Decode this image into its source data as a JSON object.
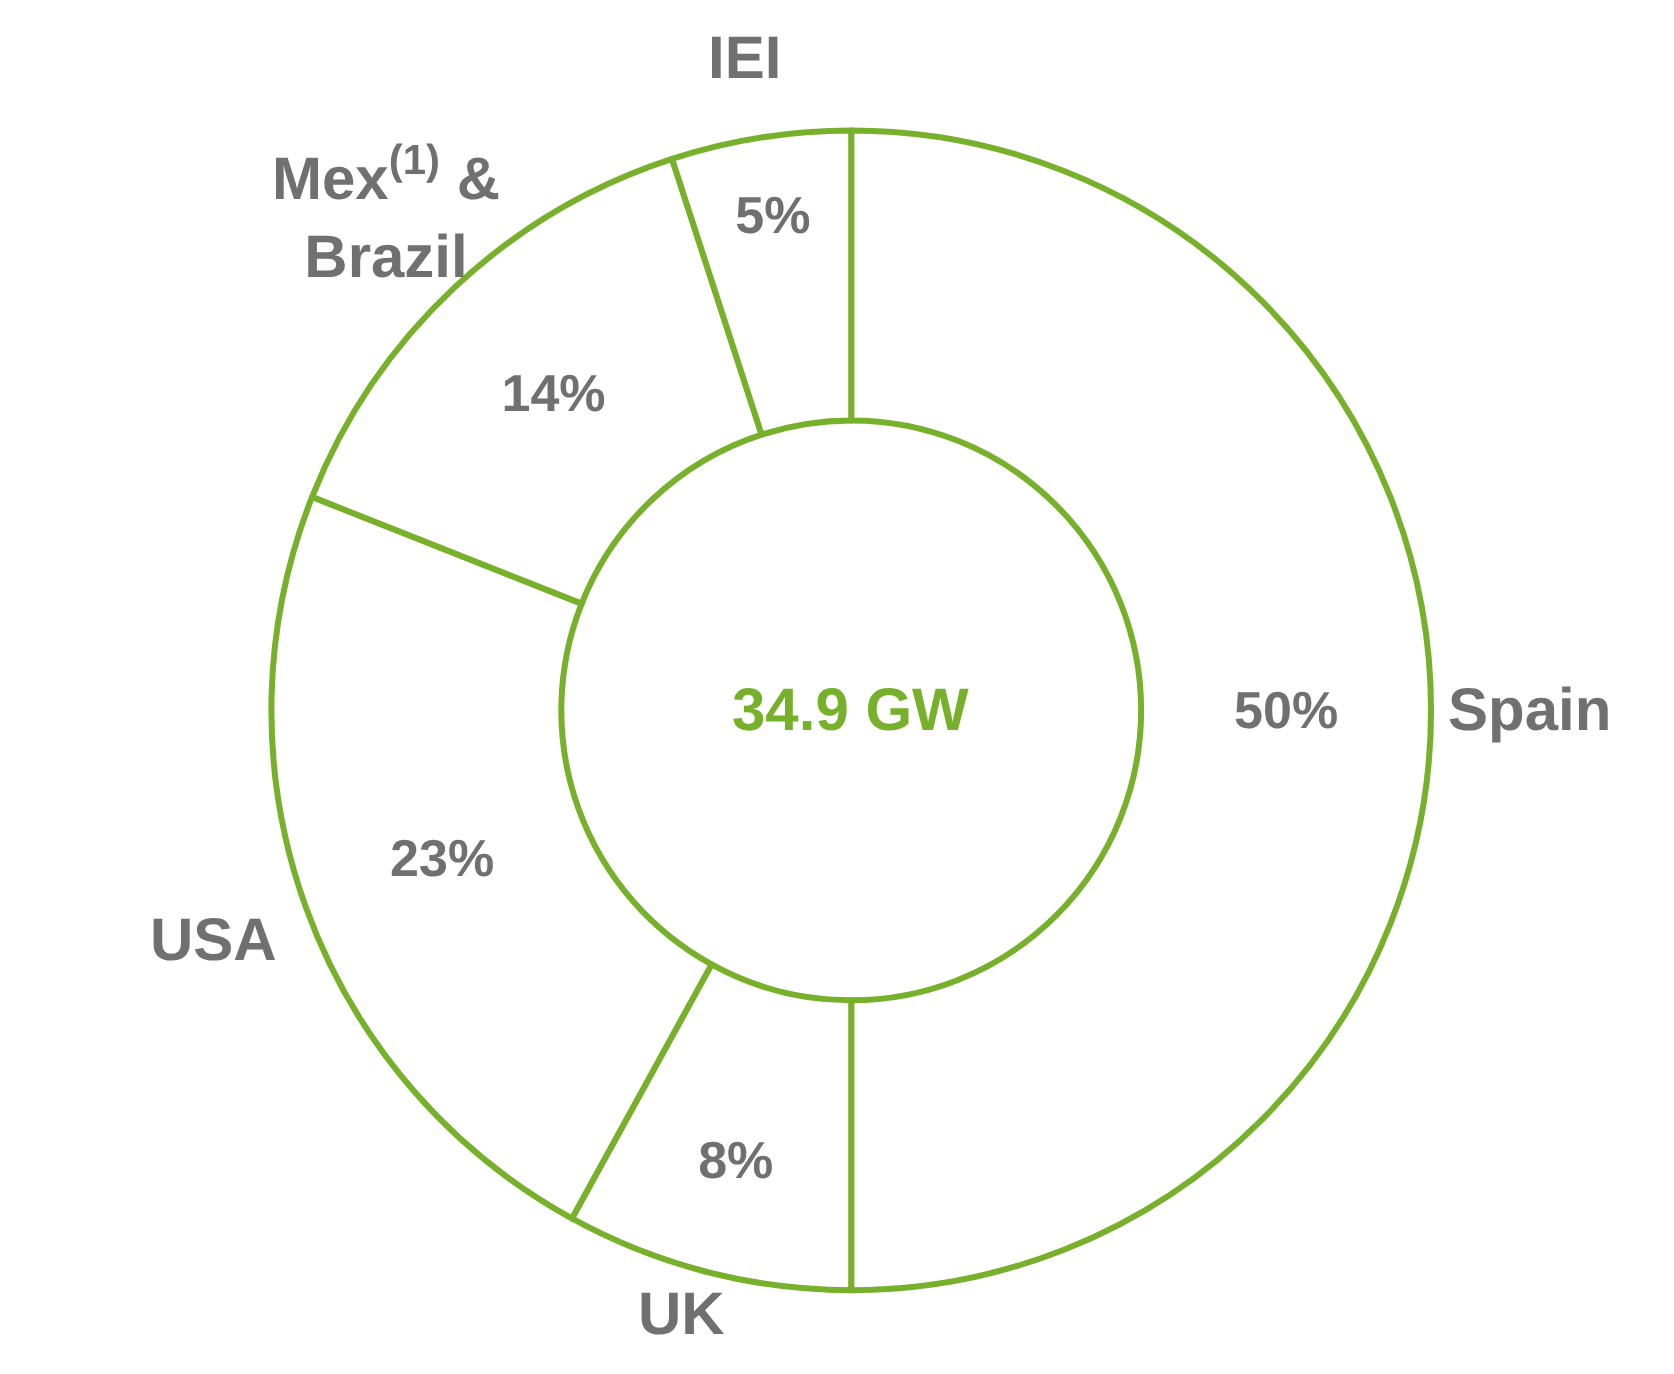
{
  "chart_data": {
    "type": "donut",
    "categories": [
      "Spain",
      "UK",
      "USA",
      "Mex$^{(1)}$ &\nBrazil",
      "IEI"
    ],
    "values": [
      50,
      8,
      23,
      14,
      5
    ],
    "colors": [
      "#ffffff",
      "#ffffff",
      "#ffffff",
      "#ffffff",
      "#ffffff"
    ],
    "value_labels": [
      "50%",
      "8%",
      "23%",
      "14%",
      "5%"
    ],
    "annotations": [
      "34.9 GW"
    ],
    "legend": false
  }
}
